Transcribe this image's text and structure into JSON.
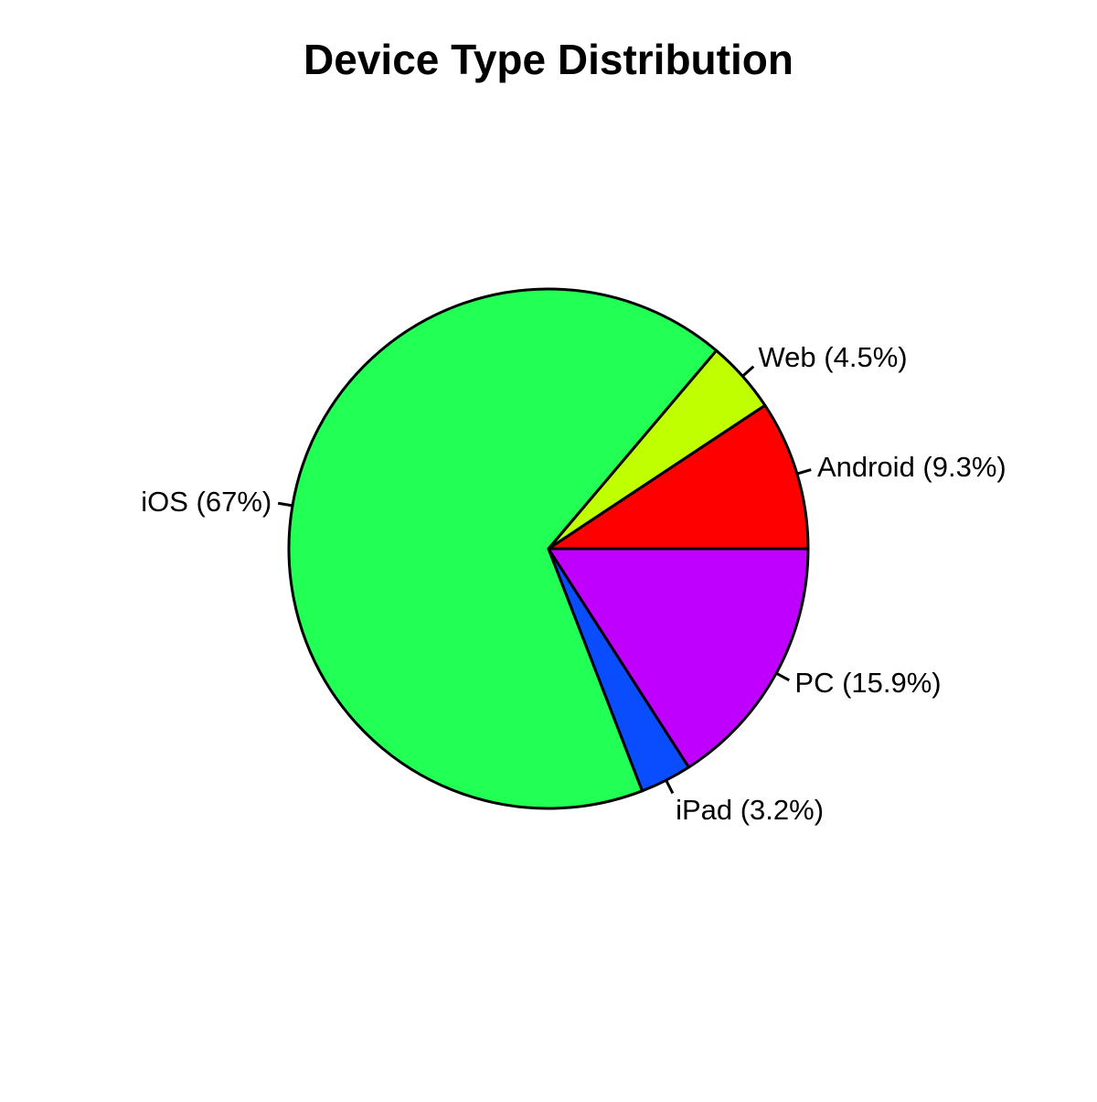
{
  "chart_data": {
    "type": "pie",
    "title": "Device Type Distribution",
    "start_angle_deg": 0,
    "direction": "counterclockwise",
    "slices": [
      {
        "name": "Android",
        "label": "Android (9.3%)",
        "value": 9.3,
        "color": "#FF0000"
      },
      {
        "name": "Web",
        "label": "Web (4.5%)",
        "value": 4.5,
        "color": "#BFFF00"
      },
      {
        "name": "iOS",
        "label": "iOS (67%)",
        "value": 67,
        "color": "#22FF55"
      },
      {
        "name": "iPad",
        "label": "iPad (3.2%)",
        "value": 3.2,
        "color": "#0A4DFF"
      },
      {
        "name": "PC",
        "label": "PC (15.9%)",
        "value": 15.9,
        "color": "#BF00FF"
      }
    ]
  }
}
